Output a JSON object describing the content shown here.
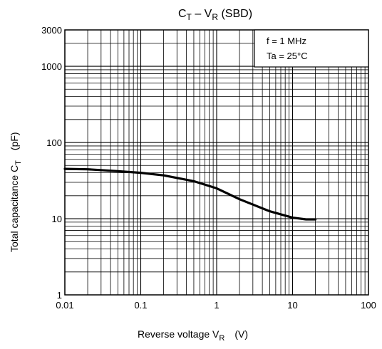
{
  "chart_data": {
    "type": "line",
    "title": {
      "main": "C",
      "sub1": "T",
      "mid": " – V",
      "sub2": "R",
      "tail": " (SBD)"
    },
    "xlabel": {
      "main": "Reverse voltage  V",
      "sub": "R",
      "unit": "(V)"
    },
    "ylabel": {
      "main": "Total capacitance  C",
      "sub": "T",
      "unit": "(pF)"
    },
    "x_scale": "log",
    "y_scale": "log",
    "xlim": [
      0.01,
      100
    ],
    "ylim": [
      1,
      3000
    ],
    "x_ticks": [
      {
        "value": 0.01,
        "label": "0.01"
      },
      {
        "value": 0.1,
        "label": "0.1"
      },
      {
        "value": 1,
        "label": "1"
      },
      {
        "value": 10,
        "label": "10"
      },
      {
        "value": 100,
        "label": "100"
      }
    ],
    "y_ticks": [
      {
        "value": 1,
        "label": "1"
      },
      {
        "value": 10,
        "label": "10"
      },
      {
        "value": 100,
        "label": "100"
      },
      {
        "value": 1000,
        "label": "1000"
      },
      {
        "value": 3000,
        "label": "3000"
      }
    ],
    "grid": true,
    "annotations": [
      "f = 1 MHz",
      "Ta = 25°C"
    ],
    "legend_position": "top-right",
    "series": [
      {
        "color": "#000000",
        "x": [
          0.01,
          0.02,
          0.05,
          0.1,
          0.2,
          0.5,
          1,
          2,
          5,
          10,
          15,
          20
        ],
        "y": [
          45,
          44.5,
          42,
          40,
          37,
          31,
          25,
          18,
          12.5,
          10.3,
          9.8,
          9.8
        ]
      }
    ]
  }
}
